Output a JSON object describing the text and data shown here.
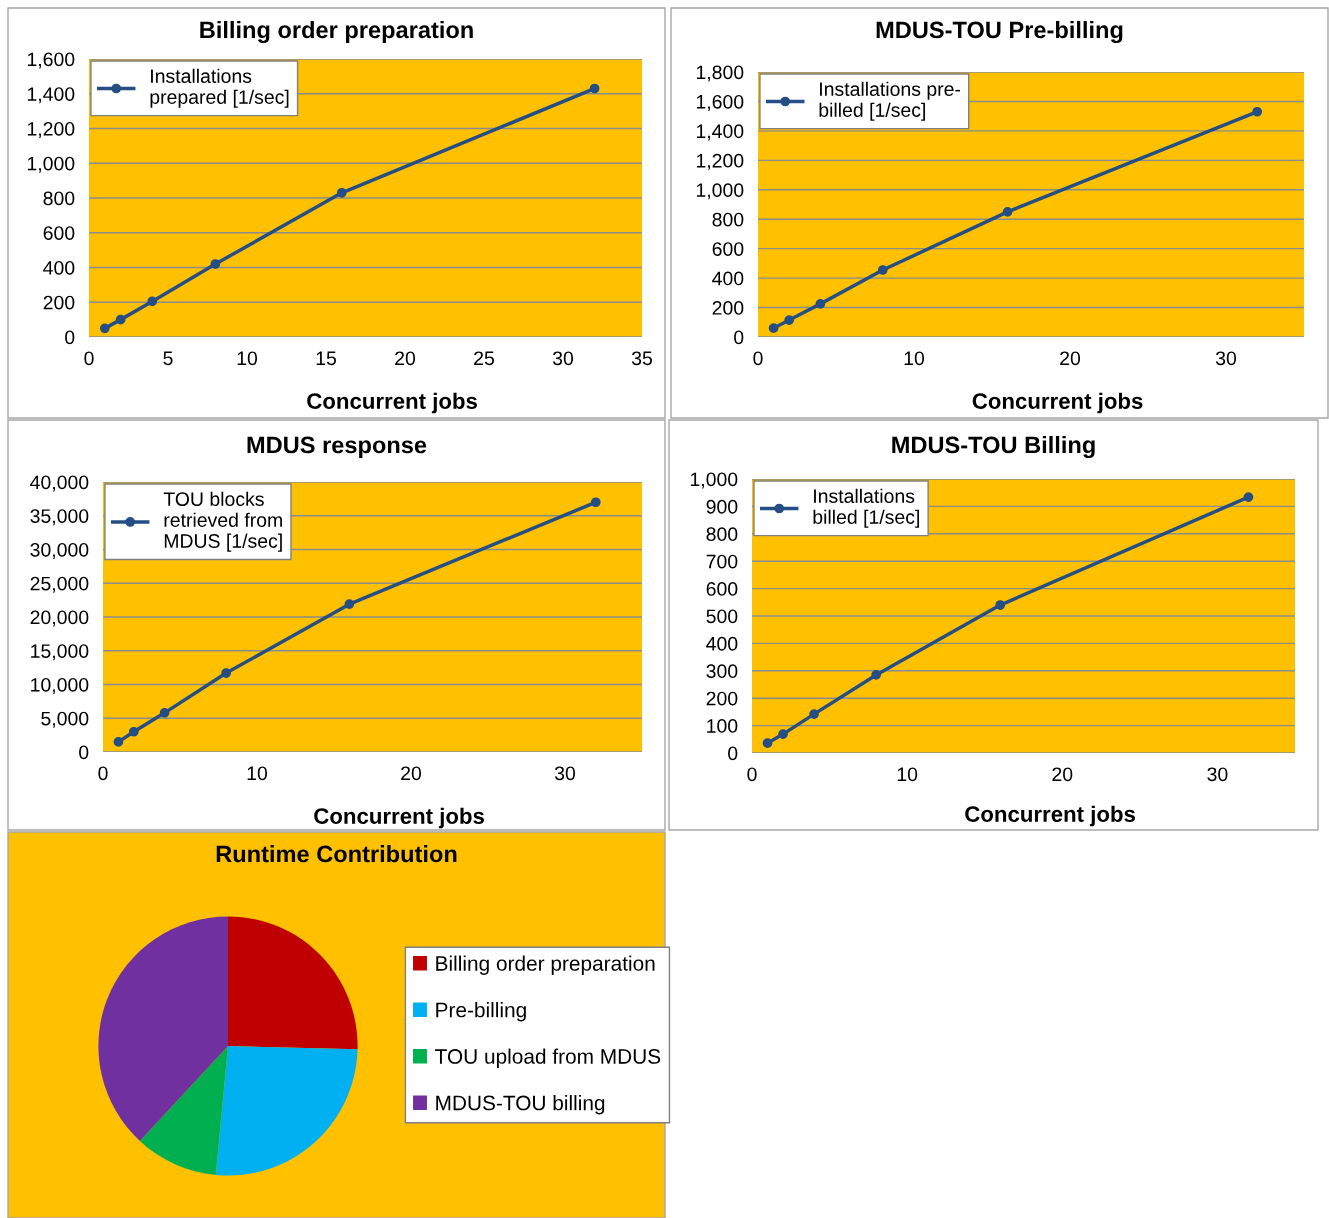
{
  "chart_data": [
    {
      "type": "line",
      "title": "Billing order preparation",
      "xlabel": "Concurrent jobs",
      "x": [
        1,
        2,
        4,
        8,
        16,
        32
      ],
      "series": [
        {
          "name": "Installations\nprepared [1/sec]",
          "color": "#254e85",
          "values": [
            50,
            100,
            205,
            420,
            830,
            1430
          ]
        }
      ],
      "xlim": [
        0,
        35
      ],
      "xticks": [
        0,
        5,
        10,
        15,
        20,
        25,
        30,
        35
      ],
      "ylim": [
        0,
        1600
      ],
      "yticks": [
        0,
        200,
        400,
        600,
        800,
        {
          "value": 1000,
          "label": "1,000"
        },
        {
          "value": 1200,
          "label": "1,200"
        },
        {
          "value": 1400,
          "label": "1,400"
        },
        {
          "value": 1600,
          "label": "1,600"
        }
      ],
      "grid": "y",
      "legend": "top left",
      "marker": "circle",
      "line_style": "solid"
    },
    {
      "type": "line",
      "title": "MDUS-TOU Pre-billing",
      "xlabel": "Concurrent jobs",
      "x": [
        1,
        2,
        4,
        8,
        16,
        32
      ],
      "series": [
        {
          "name": "Installations pre-\nbilled [1/sec]",
          "color": "#254e85",
          "values": [
            60,
            115,
            225,
            455,
            850,
            1530
          ]
        }
      ],
      "xlim": [
        0,
        35
      ],
      "xticks": [
        0,
        10,
        20,
        30
      ],
      "ylim": [
        0,
        1800
      ],
      "yticks": [
        0,
        200,
        400,
        600,
        800,
        {
          "value": 1000,
          "label": "1,000"
        },
        {
          "value": 1200,
          "label": "1,200"
        },
        {
          "value": 1400,
          "label": "1,400"
        },
        {
          "value": 1600,
          "label": "1,600"
        },
        {
          "value": 1800,
          "label": "1,800"
        }
      ],
      "grid": "y",
      "legend": "top left",
      "marker": "circle",
      "line_style": "solid"
    },
    {
      "type": "line",
      "title": "MDUS response",
      "xlabel": "Concurrent jobs",
      "x": [
        1,
        2,
        4,
        8,
        16,
        32
      ],
      "series": [
        {
          "name": "TOU blocks\nretrieved from\nMDUS [1/sec]",
          "color": "#254e85",
          "values": [
            1500,
            3000,
            5800,
            11700,
            21900,
            37000
          ]
        }
      ],
      "xlim": [
        0,
        35
      ],
      "xticks": [
        0,
        10,
        20,
        30
      ],
      "ylim": [
        0,
        40000
      ],
      "yticks": [
        0,
        {
          "value": 5000,
          "label": "5,000"
        },
        {
          "value": 10000,
          "label": "10,000"
        },
        {
          "value": 15000,
          "label": "15,000"
        },
        {
          "value": 20000,
          "label": "20,000"
        },
        {
          "value": 25000,
          "label": "25,000"
        },
        {
          "value": 30000,
          "label": "30,000"
        },
        {
          "value": 35000,
          "label": "35,000"
        },
        {
          "value": 40000,
          "label": "40,000"
        }
      ],
      "grid": "y",
      "legend": "top left",
      "marker": "circle",
      "line_style": "solid"
    },
    {
      "type": "line",
      "title": "MDUS-TOU Billing",
      "xlabel": "Concurrent jobs",
      "x": [
        1,
        2,
        4,
        8,
        16,
        32
      ],
      "series": [
        {
          "name": "Installations\nbilled [1/sec]",
          "color": "#254e85",
          "values": [
            36,
            69,
            142,
            285,
            540,
            934
          ]
        }
      ],
      "xlim": [
        0,
        35
      ],
      "xticks": [
        0,
        10,
        20,
        30
      ],
      "ylim": [
        0,
        1000
      ],
      "yticks": [
        0,
        100,
        200,
        300,
        400,
        500,
        600,
        700,
        800,
        900,
        {
          "value": 1000,
          "label": "1,000"
        }
      ],
      "grid": "y",
      "legend": "top left",
      "marker": "circle",
      "line_style": "solid"
    },
    {
      "type": "pie",
      "title": "Runtime Contribution",
      "categories": [
        "Billing order preparation",
        "Pre-billing",
        "TOU upload from MDUS",
        "MDUS-TOU billing"
      ],
      "values": [
        25.4,
        26.1,
        10.4,
        38.1
      ],
      "colors": [
        "#c00000",
        "#00b0f0",
        "#00b050",
        "#7030a0"
      ],
      "legend": "right"
    }
  ]
}
